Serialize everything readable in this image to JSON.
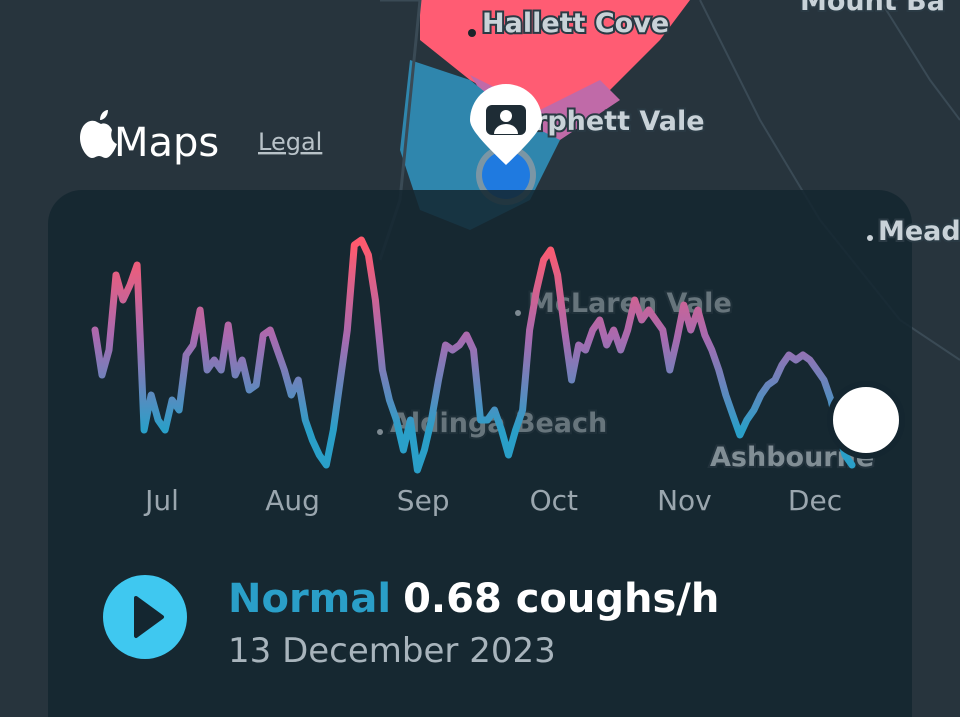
{
  "map_labels": [
    "Mount Ba",
    "Hallett Cove",
    "rphett Vale",
    "Meado",
    "McLaren Vale",
    "Aldinga Beach",
    "Ashbourne"
  ],
  "brand": "Maps",
  "legal": "Legal",
  "chart_data": {
    "type": "line",
    "month_labels": [
      "Jul",
      "Aug",
      "Sep",
      "Oct",
      "Nov",
      "Dec"
    ],
    "values": [
      1.6,
      1.15,
      1.4,
      2.15,
      1.9,
      2.05,
      2.25,
      0.6,
      0.95,
      0.7,
      0.6,
      0.9,
      0.8,
      1.35,
      1.45,
      1.8,
      1.2,
      1.3,
      1.2,
      1.65,
      1.15,
      1.3,
      1.0,
      1.05,
      1.55,
      1.6,
      1.4,
      1.2,
      0.95,
      1.1,
      0.7,
      0.5,
      0.35,
      0.25,
      0.6,
      1.1,
      1.6,
      2.45,
      2.5,
      2.35,
      1.9,
      1.2,
      0.9,
      0.7,
      0.4,
      0.7,
      0.2,
      0.4,
      0.7,
      1.1,
      1.45,
      1.4,
      1.45,
      1.55,
      1.4,
      0.7,
      0.7,
      0.8,
      0.6,
      0.35,
      0.6,
      0.8,
      1.6,
      2.0,
      2.3,
      2.4,
      2.15,
      1.6,
      1.1,
      1.45,
      1.4,
      1.6,
      1.7,
      1.45,
      1.6,
      1.4,
      1.6,
      1.9,
      1.7,
      1.8,
      1.7,
      1.6,
      1.2,
      1.5,
      1.85,
      1.6,
      1.8,
      1.55,
      1.4,
      1.2,
      0.95,
      0.75,
      0.55,
      0.7,
      0.8,
      0.95,
      1.05,
      1.1,
      1.25,
      1.35,
      1.3,
      1.35,
      1.3,
      1.2,
      1.1,
      0.9,
      0.6,
      0.35,
      0.25
    ],
    "ylim": [
      0,
      2.6
    ]
  },
  "status": {
    "level": "Normal",
    "reading": "0.68 coughs/h",
    "date": "13 December 2023"
  }
}
